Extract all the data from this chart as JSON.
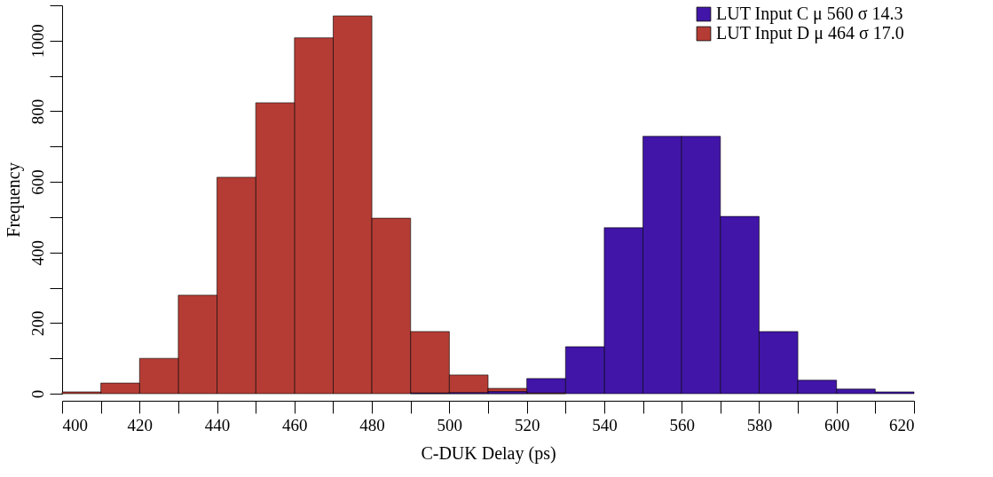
{
  "chart_data": {
    "type": "histogram",
    "xlabel": "C-DUK Delay (ps)",
    "ylabel": "Frequency",
    "bins": [
      400,
      410,
      420,
      430,
      440,
      450,
      460,
      470,
      480,
      490,
      500,
      510,
      520,
      530,
      540,
      550,
      560,
      570,
      580,
      590,
      600,
      610,
      620
    ],
    "series": [
      {
        "name": "LUT Input C   μ 560 σ 14.3",
        "color": "#4115a8",
        "values": [
          null,
          null,
          null,
          null,
          null,
          null,
          null,
          null,
          null,
          2,
          3,
          6,
          43,
          133,
          470,
          729,
          729,
          502,
          176,
          38,
          13,
          5
        ]
      },
      {
        "name": "LUT Input D   μ 464 σ 17.0",
        "color": "#b53c34",
        "values": [
          5,
          30,
          100,
          279,
          613,
          824,
          1008,
          1070,
          497,
          176,
          53,
          15,
          2,
          null,
          null,
          null,
          null,
          null,
          null,
          null,
          null,
          null
        ]
      }
    ],
    "xlim": [
      400,
      620
    ],
    "ylim": [
      0,
      1100
    ],
    "xticks": [
      400,
      {
        "value": 410,
        "label": null
      },
      420,
      {
        "value": 430,
        "label": null
      },
      440,
      {
        "value": 450,
        "label": null
      },
      460,
      {
        "value": 470,
        "label": null
      },
      480,
      {
        "value": 490,
        "label": null
      },
      500,
      {
        "value": 510,
        "label": null
      },
      520,
      {
        "value": 530,
        "label": null
      },
      540,
      {
        "value": 550,
        "label": null
      },
      560,
      {
        "value": 570,
        "label": null
      },
      580,
      {
        "value": 590,
        "label": null
      },
      600,
      {
        "value": 610,
        "label": null
      },
      620
    ],
    "yticks": [
      0,
      {
        "value": 100,
        "label": null
      },
      200,
      {
        "value": 300,
        "label": null
      },
      400,
      {
        "value": 500,
        "label": null
      },
      600,
      {
        "value": 700,
        "label": null
      },
      800,
      {
        "value": 900,
        "label": null
      },
      1000,
      {
        "value": 1100,
        "label": null
      }
    ],
    "grid": false,
    "legend": "top right"
  }
}
